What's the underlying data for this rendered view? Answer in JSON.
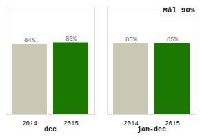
{
  "chart_data": {
    "type": "bar",
    "categories": [
      "dec",
      "jan-dec"
    ],
    "series": [
      {
        "name": "2014",
        "color": "#c8c8b4",
        "values": [
          84,
          85
        ],
        "value_labels": [
          "84%",
          "85%"
        ]
      },
      {
        "name": "2015",
        "color": "#1a7800",
        "values": [
          86,
          85
        ],
        "value_labels": [
          "86%",
          "85%"
        ]
      }
    ],
    "annotation": "Mål 90%",
    "ylim": [
      0,
      130
    ],
    "data_labels": true,
    "tick_labels": "x",
    "grid": false
  }
}
